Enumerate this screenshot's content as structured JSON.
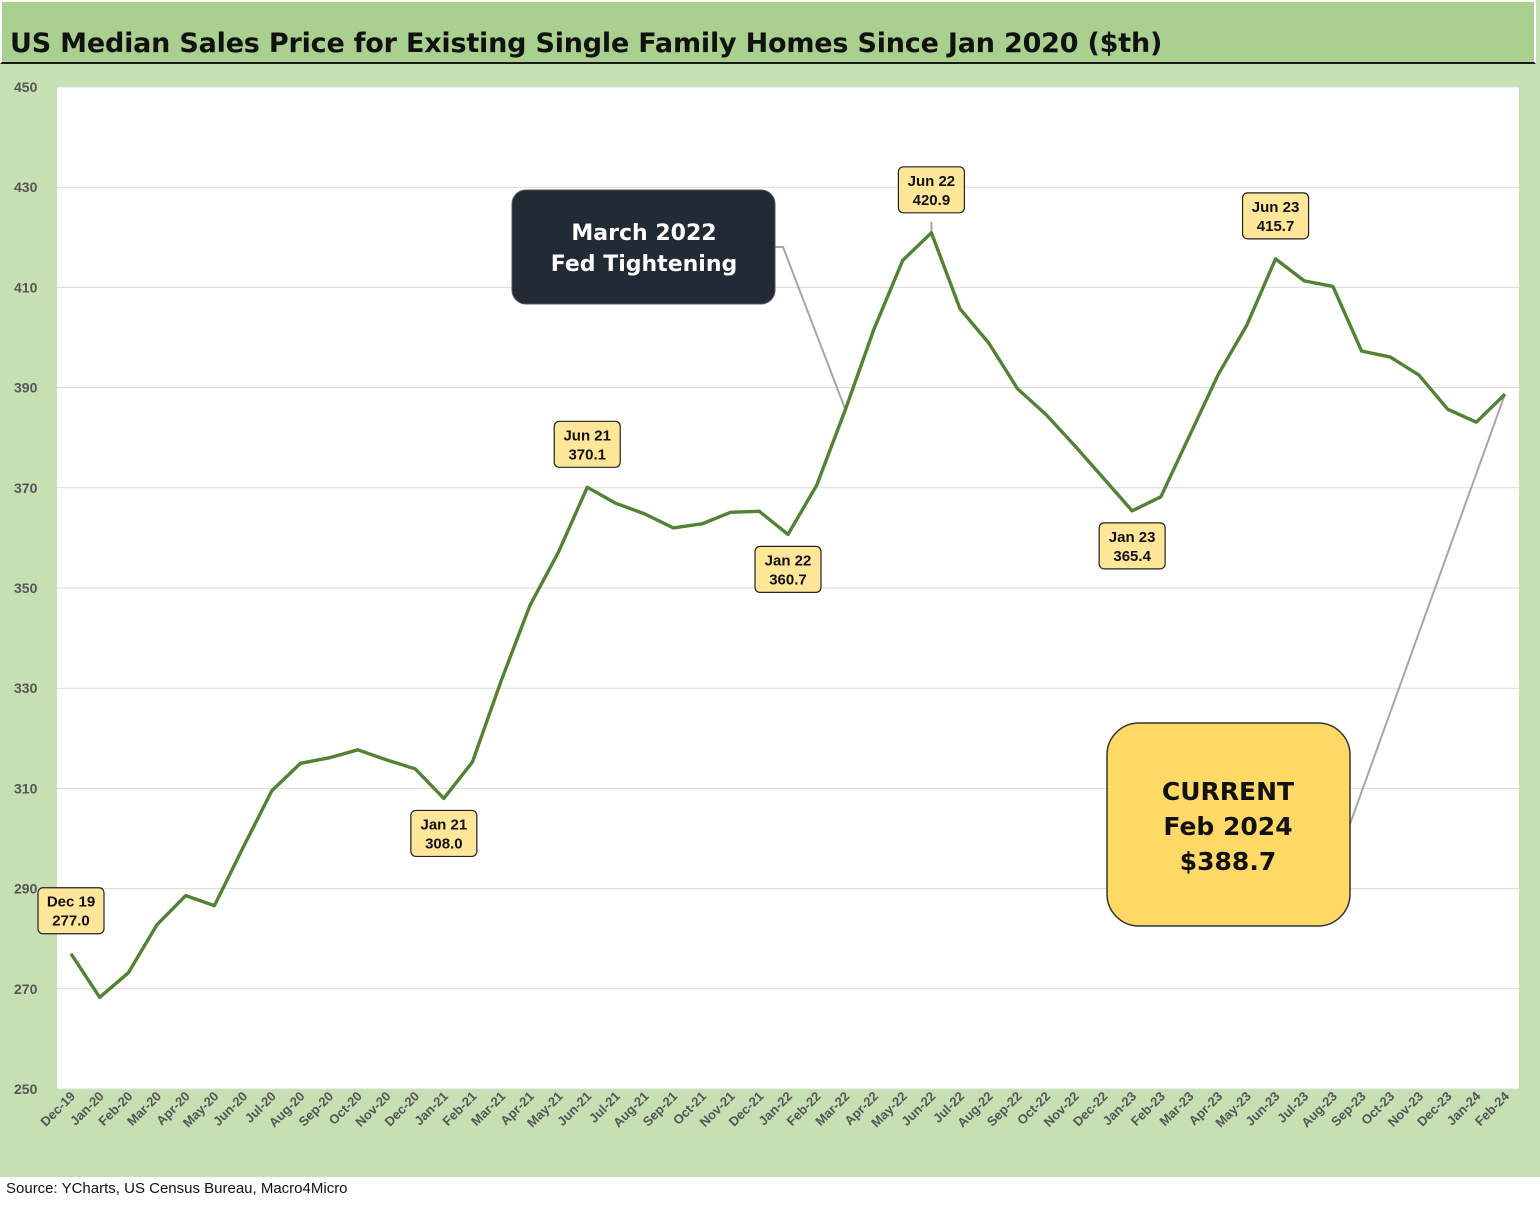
{
  "title": "US Median Sales Price for Existing Single Family Homes Since Jan 2020 ($th)",
  "source": "Source: YCharts, US Census Bureau, Macro4Micro",
  "colors": {
    "line": "#548235",
    "frame": "#c6e0b4",
    "title_bg": "#a9d08e",
    "label_bg": "#ffe699",
    "current_bg": "#ffd966",
    "dark_box": "#222a35"
  },
  "chart_data": {
    "type": "line",
    "title": "US Median Sales Price for Existing Single Family Homes Since Jan 2020 ($th)",
    "xlabel": "",
    "ylabel": "",
    "ylim": [
      250,
      450
    ],
    "yticks": [
      250,
      270,
      290,
      310,
      330,
      350,
      370,
      390,
      410,
      430,
      450
    ],
    "grid": true,
    "categories": [
      "Dec-19",
      "Jan-20",
      "Feb-20",
      "Mar-20",
      "Apr-20",
      "May-20",
      "Jun-20",
      "Jul-20",
      "Aug-20",
      "Sep-20",
      "Oct-20",
      "Nov-20",
      "Dec-20",
      "Jan-21",
      "Feb-21",
      "Mar-21",
      "Apr-21",
      "May-21",
      "Jun-21",
      "Jul-21",
      "Aug-21",
      "Sep-21",
      "Oct-21",
      "Nov-21",
      "Dec-21",
      "Jan-22",
      "Feb-22",
      "Mar-22",
      "Apr-22",
      "May-22",
      "Jun-22",
      "Jul-22",
      "Aug-22",
      "Sep-22",
      "Oct-22",
      "Nov-22",
      "Dec-22",
      "Jan-23",
      "Feb-23",
      "Mar-23",
      "Apr-23",
      "May-23",
      "Jun-23",
      "Jul-23",
      "Aug-23",
      "Sep-23",
      "Oct-23",
      "Nov-23",
      "Dec-23",
      "Jan-24",
      "Feb-24"
    ],
    "series": [
      {
        "name": "Median Sales Price ($th)",
        "values": [
          277.0,
          268.3,
          273.2,
          282.8,
          288.6,
          286.6,
          298.2,
          309.5,
          315.0,
          316.1,
          317.7,
          315.7,
          313.9,
          308.0,
          315.3,
          331.5,
          346.5,
          357.2,
          370.1,
          366.9,
          364.8,
          362.0,
          362.8,
          365.1,
          365.3,
          360.7,
          370.5,
          385.6,
          401.7,
          415.4,
          420.9,
          405.7,
          398.9,
          389.8,
          384.6,
          378.4,
          371.9,
          365.4,
          368.2,
          380.4,
          392.6,
          402.5,
          415.7,
          411.3,
          410.2,
          397.3,
          396.1,
          392.5,
          385.7,
          383.1,
          388.7
        ]
      }
    ],
    "point_labels": [
      {
        "index": 0,
        "line1": "Dec 19",
        "line2": "277.0"
      },
      {
        "index": 13,
        "line1": "Jan 21",
        "line2": "308.0"
      },
      {
        "index": 18,
        "line1": "Jun 21",
        "line2": "370.1"
      },
      {
        "index": 25,
        "line1": "Jan 22",
        "line2": "360.7"
      },
      {
        "index": 30,
        "line1": "Jun 22",
        "line2": "420.9"
      },
      {
        "index": 37,
        "line1": "Jan 23",
        "line2": "365.4"
      },
      {
        "index": 42,
        "line1": "Jun 23",
        "line2": "415.7"
      }
    ],
    "annotations": {
      "fed": {
        "line1": "March 2022",
        "line2": "Fed Tightening",
        "index": 27
      },
      "current": {
        "line1": "CURRENT",
        "line2": "Feb 2024",
        "line3": "$388.7",
        "index": 50
      }
    }
  }
}
